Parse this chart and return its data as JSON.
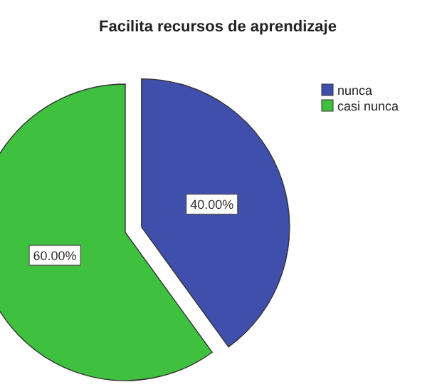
{
  "chart_data": {
    "type": "pie",
    "title": "Facilita recursos de aprendizaje",
    "categories": [
      "nunca",
      "casi nunca"
    ],
    "values": [
      40,
      60
    ],
    "colors": [
      "#3f4fab",
      "#3fc03f"
    ],
    "value_labels": [
      "40.00%",
      "60.00%"
    ],
    "legend": "top right"
  }
}
